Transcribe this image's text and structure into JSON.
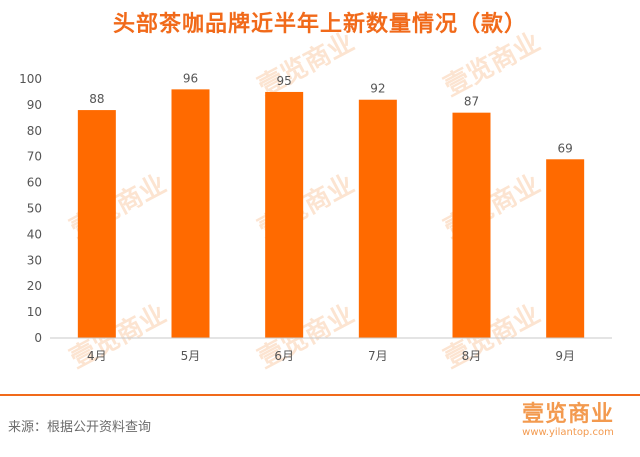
{
  "title": "头部茶咖品牌近半年上新数量情况（款）",
  "source": "来源：根据公开资料查询",
  "brand": {
    "logo": "壹览商业",
    "url": "www.yilantop.com"
  },
  "watermark": "壹览商业",
  "colors": {
    "bar": "#ff6a00",
    "title": "#f16a1a",
    "axis": "#c8c8c8",
    "text": "#555555"
  },
  "chart_data": {
    "type": "bar",
    "categories": [
      "4月",
      "5月",
      "6月",
      "7月",
      "8月",
      "9月"
    ],
    "values": [
      88,
      96,
      95,
      92,
      87,
      69
    ],
    "ylim": [
      0,
      100
    ],
    "yticks": [
      0,
      10,
      20,
      30,
      40,
      50,
      60,
      70,
      80,
      90,
      100
    ],
    "grid": false,
    "data_labels": true
  }
}
